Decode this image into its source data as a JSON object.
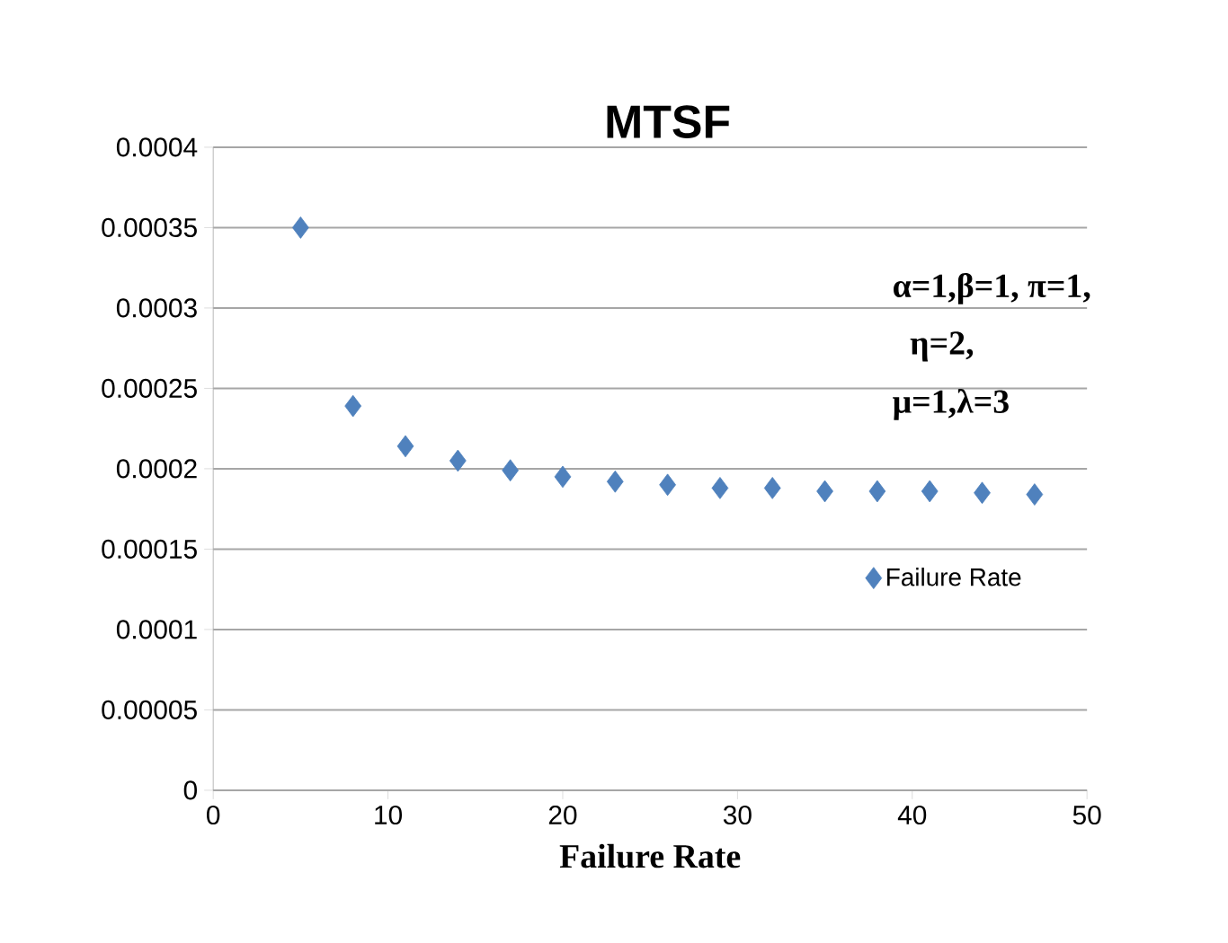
{
  "chart_data": {
    "type": "scatter",
    "title": "MTSF",
    "xlabel": "Failure Rate",
    "annotations": [
      "α=1,β=1, π=1,",
      "η=2,",
      "μ=1,λ=3"
    ],
    "x": [
      5,
      8,
      11,
      14,
      17,
      20,
      23,
      26,
      29,
      32,
      35,
      38,
      41,
      44,
      47
    ],
    "series": [
      {
        "name": "Failure Rate",
        "color": "#4f81bd",
        "values": [
          0.00035,
          0.000239,
          0.000214,
          0.000205,
          0.000199,
          0.000195,
          0.000192,
          0.00019,
          0.000188,
          0.000188,
          0.000186,
          0.000186,
          0.000186,
          0.000185,
          0.000184
        ]
      }
    ],
    "xlim": [
      0,
      50
    ],
    "xticks": [
      0,
      10,
      20,
      30,
      40,
      50
    ],
    "ylim": [
      0,
      0.0004
    ],
    "yticks": [
      0,
      {
        "value": 5e-05,
        "label": "0.00005"
      },
      0.0001,
      0.00015,
      0.0002,
      0.00025,
      0.0003,
      0.00035,
      0.0004
    ],
    "grid": "y",
    "legend": "right",
    "marker": "diamond"
  }
}
